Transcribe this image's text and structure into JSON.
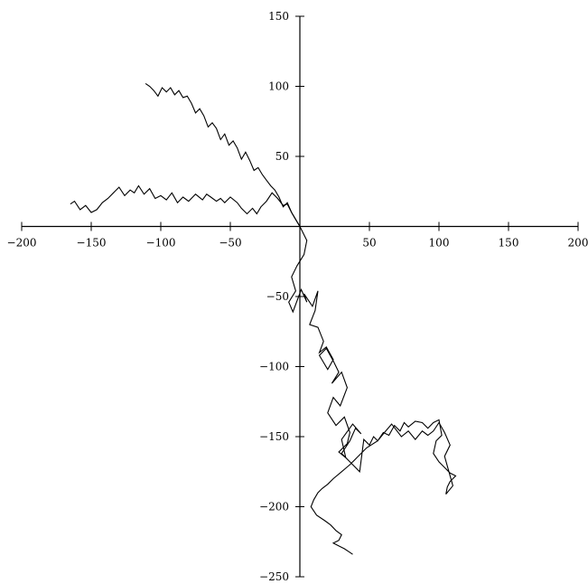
{
  "chart_data": {
    "type": "line",
    "title": "",
    "xlabel": "",
    "ylabel": "",
    "xlim": [
      -200,
      200
    ],
    "ylim": [
      -250,
      150
    ],
    "grid": false,
    "axes_through_origin": true,
    "line_color": "#000000",
    "x_ticks": [
      -200,
      -150,
      -100,
      -50,
      50,
      100,
      150,
      200
    ],
    "x_tick_labels": [
      "−200",
      "−150",
      "−100",
      "−50",
      "50",
      "100",
      "150",
      "200"
    ],
    "y_ticks": [
      150,
      100,
      50,
      -50,
      -100,
      -150,
      -200,
      -250
    ],
    "y_tick_labels": [
      "150",
      "100",
      "50",
      "−50",
      "−100",
      "−150",
      "−200",
      "−250"
    ],
    "series": [
      {
        "x": [
          0,
          -3,
          -6,
          -9,
          -12,
          -16,
          -20,
          -24,
          -28,
          -31,
          -34,
          -38,
          -42,
          -45,
          -50,
          -54,
          -57,
          -60,
          -64,
          -67,
          -70,
          -75,
          -80,
          -84,
          -88,
          -92,
          -96,
          -100,
          -104,
          -108,
          -112,
          -116,
          -119,
          -122,
          -126,
          -130,
          -134,
          -138,
          -142,
          -146,
          -150,
          -154,
          -158,
          -162,
          -165
        ],
        "y": [
          0,
          5,
          10,
          16,
          15,
          20,
          24,
          18,
          14,
          9,
          13,
          9,
          13,
          17,
          21,
          17,
          20,
          18,
          21,
          23,
          19,
          23,
          18,
          21,
          17,
          24,
          19,
          22,
          20,
          27,
          23,
          29,
          24,
          26,
          22,
          28,
          24,
          20,
          17,
          12,
          10,
          15,
          12,
          18,
          16
        ]
      },
      {
        "x": [
          0,
          -3,
          -6,
          -9,
          -12,
          -15,
          -18,
          -21,
          -24,
          -27,
          -30,
          -33,
          -36,
          -39,
          -42,
          -45,
          -48,
          -51,
          -54,
          -57,
          -60,
          -63,
          -66,
          -69,
          -72,
          -75,
          -78,
          -81,
          -84,
          -87,
          -90,
          -93,
          -96,
          -99,
          -102,
          -105,
          -108,
          -111
        ],
        "y": [
          0,
          5,
          10,
          17,
          14,
          21,
          26,
          29,
          33,
          37,
          42,
          40,
          47,
          53,
          48,
          56,
          61,
          58,
          66,
          62,
          70,
          74,
          71,
          79,
          84,
          81,
          88,
          93,
          92,
          97,
          94,
          99,
          96,
          99,
          93,
          97,
          100,
          102
        ]
      },
      {
        "x": [
          0,
          5,
          3,
          -2,
          -6,
          -3,
          -8,
          -5,
          1,
          5,
          3,
          9,
          13,
          11,
          7,
          13,
          17,
          14,
          19,
          24,
          20,
          14,
          19,
          24,
          28,
          23,
          30,
          34,
          29,
          24,
          20,
          26,
          32,
          36,
          34,
          28,
          33,
          30,
          38,
          44,
          40,
          36,
          30,
          38,
          43,
          46,
          50,
          53,
          56,
          60,
          64,
          68,
          72,
          75,
          78,
          83,
          88,
          92,
          96,
          100,
          102,
          98,
          96,
          100,
          104,
          108,
          112,
          108,
          106,
          105,
          110,
          104,
          108,
          104,
          100,
          96,
          92,
          88,
          83,
          78,
          73,
          66,
          60,
          56,
          48,
          41,
          36,
          30,
          24,
          20,
          16,
          13,
          10,
          8,
          12,
          18,
          22,
          26,
          30,
          28,
          24,
          28,
          32,
          35,
          38
        ],
        "y": [
          0,
          -10,
          -20,
          -28,
          -36,
          -46,
          -54,
          -61,
          -45,
          -54,
          -48,
          -57,
          -46,
          -60,
          -70,
          -72,
          -82,
          -90,
          -86,
          -95,
          -102,
          -92,
          -87,
          -96,
          -104,
          -112,
          -104,
          -115,
          -128,
          -122,
          -133,
          -142,
          -136,
          -147,
          -155,
          -161,
          -165,
          -152,
          -141,
          -148,
          -144,
          -153,
          -162,
          -170,
          -175,
          -152,
          -156,
          -150,
          -153,
          -147,
          -149,
          -142,
          -146,
          -140,
          -143,
          -139,
          -140,
          -144,
          -140,
          -138,
          -149,
          -153,
          -162,
          -168,
          -172,
          -176,
          -178,
          -182,
          -186,
          -191,
          -185,
          -164,
          -156,
          -147,
          -140,
          -146,
          -149,
          -146,
          -152,
          -146,
          -150,
          -141,
          -148,
          -153,
          -158,
          -165,
          -170,
          -175,
          -180,
          -184,
          -187,
          -190,
          -195,
          -200,
          -206,
          -210,
          -213,
          -217,
          -220,
          -224,
          -226,
          -228,
          -230,
          -232,
          -234
        ]
      }
    ]
  }
}
